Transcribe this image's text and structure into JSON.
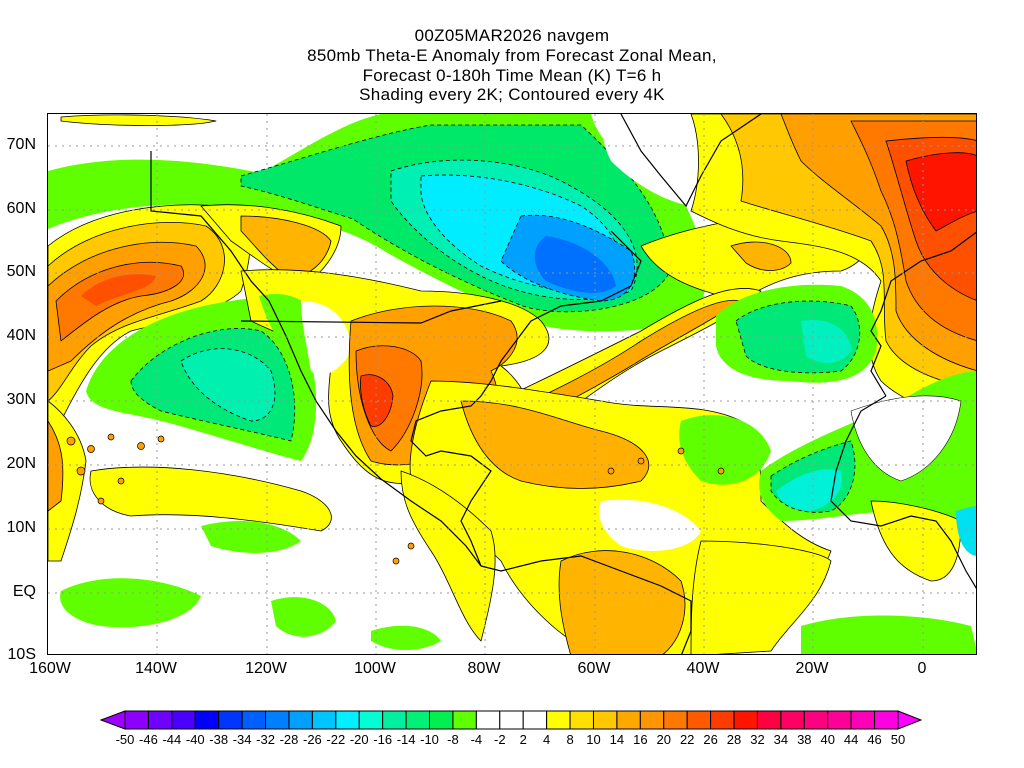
{
  "title": {
    "line1": "00Z05MAR2026 navgem",
    "line2": "850mb Theta-E Anomaly from Forecast Zonal Mean,",
    "line3": "Forecast 0-180h Time Mean (K) T=6 h",
    "line4": "Shading every 2K; Contoured every 4K"
  },
  "x_axis": [
    "160W",
    "140W",
    "120W",
    "100W",
    "80W",
    "60W",
    "40W",
    "20W",
    "0"
  ],
  "y_axis": [
    "70N",
    "60N",
    "50N",
    "40N",
    "30N",
    "20N",
    "10N",
    "EQ",
    "10S"
  ],
  "colorbar": {
    "labels": [
      "-50",
      "-46",
      "-44",
      "-40",
      "-38",
      "-34",
      "-32",
      "-28",
      "-26",
      "-22",
      "-20",
      "-16",
      "-14",
      "-10",
      "-8",
      "-4",
      "-2",
      "2",
      "4",
      "8",
      "10",
      "14",
      "16",
      "20",
      "22",
      "26",
      "28",
      "32",
      "34",
      "38",
      "40",
      "44",
      "46",
      "50"
    ],
    "colors": [
      "#8c00ff",
      "#7000ff",
      "#4b00ff",
      "#0000ff",
      "#0034ff",
      "#0060ff",
      "#0080ff",
      "#00a0ff",
      "#00c4ff",
      "#00f0ff",
      "#00ffd2",
      "#00f0a0",
      "#00f078",
      "#00f050",
      "#60ff00",
      "#ffffff",
      "#ffffff",
      "#ffffff",
      "#ffff00",
      "#ffe000",
      "#ffc800",
      "#ffa800",
      "#ff9600",
      "#ff7800",
      "#ff5a00",
      "#ff3c00",
      "#ff1400",
      "#ff0040",
      "#ff0064",
      "#ff0080",
      "#ff0098",
      "#ff00b8",
      "#ff00e0"
    ],
    "low_arrow_color": "#a000ff",
    "high_arrow_color": "#ff00ff"
  }
}
